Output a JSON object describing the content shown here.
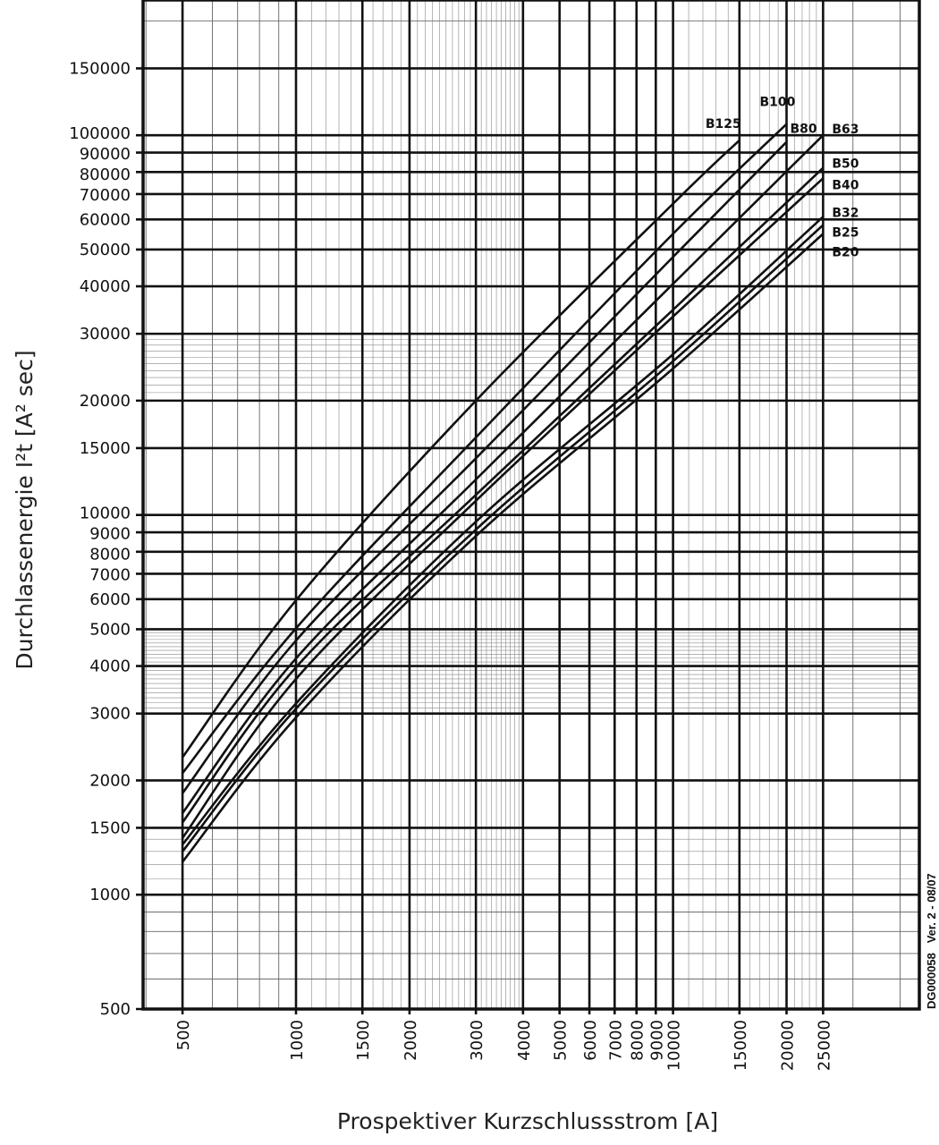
{
  "chart_data": {
    "type": "line",
    "title": "",
    "xlabel": "Prospektiver Kurzschlussstrom [A]",
    "ylabel": "Durchlassenergie I²t [A² sec]",
    "xscale": "log",
    "yscale": "log",
    "xlim": [
      393,
      45000
    ],
    "ylim": [
      500,
      227000
    ],
    "grid": true,
    "x_ticks": [
      500,
      1000,
      1500,
      2000,
      3000,
      4000,
      5000,
      6000,
      7000,
      8000,
      9000,
      10000,
      15000,
      20000,
      25000
    ],
    "y_ticks": [
      500,
      1000,
      1500,
      2000,
      3000,
      4000,
      5000,
      6000,
      7000,
      8000,
      9000,
      10000,
      15000,
      20000,
      30000,
      40000,
      50000,
      60000,
      70000,
      80000,
      90000,
      100000,
      150000
    ],
    "series": [
      {
        "name": "B125",
        "x": [
          500,
          1000,
          3000,
          10000,
          15000
        ],
        "y": [
          2300,
          5960,
          20000,
          66000,
          97000
        ]
      },
      {
        "name": "B100",
        "x": [
          500,
          1000,
          3000,
          10000,
          20000
        ],
        "y": [
          2090,
          5030,
          16000,
          55000,
          107000
        ]
      },
      {
        "name": "B80",
        "x": [
          500,
          1000,
          3000,
          10000,
          20000
        ],
        "y": [
          1850,
          4670,
          14100,
          47800,
          96000
        ]
      },
      {
        "name": "B63",
        "x": [
          500,
          1000,
          3000,
          10000,
          25000
        ],
        "y": [
          1640,
          4190,
          12400,
          40600,
          100000
        ]
      },
      {
        "name": "B50",
        "x": [
          500,
          1000,
          3000,
          10000,
          25000
        ],
        "y": [
          1550,
          3970,
          11300,
          34700,
          82000
        ]
      },
      {
        "name": "B40",
        "x": [
          500,
          1000,
          3000,
          10000,
          25000
        ],
        "y": [
          1410,
          3700,
          10900,
          33300,
          77000
        ]
      },
      {
        "name": "B32",
        "x": [
          500,
          1000,
          3000,
          10000,
          25000
        ],
        "y": [
          1355,
          3190,
          9600,
          26500,
          61000
        ]
      },
      {
        "name": "B25",
        "x": [
          500,
          1000,
          3000,
          10000,
          25000
        ],
        "y": [
          1300,
          3090,
          9150,
          25400,
          58000
        ]
      },
      {
        "name": "B20",
        "x": [
          500,
          1000,
          3000,
          10000,
          25000
        ],
        "y": [
          1220,
          2930,
          8800,
          24300,
          55000
        ]
      }
    ],
    "line_color": "#111111",
    "annotation": "DG000058   Ver. 2 - 08/07"
  }
}
